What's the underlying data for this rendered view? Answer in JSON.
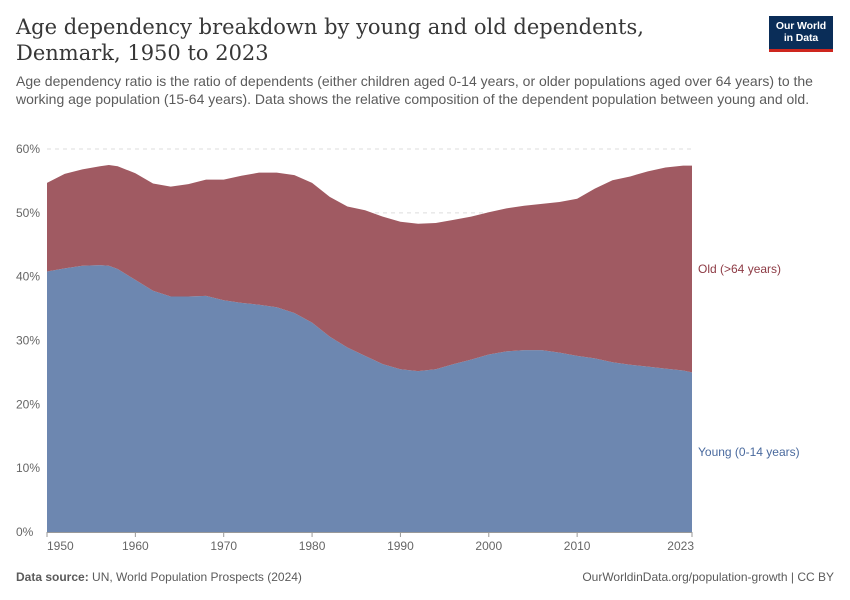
{
  "header": {
    "title": "Age dependency breakdown by young and old dependents, Denmark, 1950 to 2023",
    "subtitle": "Age dependency ratio is the ratio of dependents (either children aged 0-14 years, or older populations aged over 64 years) to the working age population (15-64 years). Data shows the relative composition of the dependent population between young and old.",
    "logo_line1": "Our World",
    "logo_line2": "in Data"
  },
  "footer": {
    "source_label": "Data source:",
    "source_text": "UN, World Population Prospects (2024)",
    "credit": "OurWorldinData.org/population-growth | CC BY"
  },
  "chart_data": {
    "type": "area",
    "stacked": true,
    "title": "Age dependency breakdown by young and old dependents, Denmark, 1950 to 2023",
    "xlabel": "",
    "ylabel": "",
    "xlim": [
      1950,
      2023
    ],
    "ylim": [
      0,
      60
    ],
    "y_ticks": [
      "0%",
      "10%",
      "20%",
      "30%",
      "40%",
      "50%",
      "60%"
    ],
    "x_ticks": [
      "1950",
      "1960",
      "1970",
      "1980",
      "1990",
      "2000",
      "2010",
      "2023"
    ],
    "grid": "horizontal",
    "legend": "inline-right",
    "colors": {
      "young": "#6d87b0",
      "old": "#a05a62",
      "young_label": "#4a6a9e",
      "old_label": "#8d3a44"
    },
    "x": [
      1950,
      1952,
      1954,
      1956,
      1957,
      1958,
      1960,
      1962,
      1964,
      1966,
      1968,
      1970,
      1972,
      1974,
      1976,
      1978,
      1980,
      1982,
      1984,
      1986,
      1988,
      1990,
      1992,
      1994,
      1996,
      1998,
      2000,
      2002,
      2004,
      2006,
      2008,
      2010,
      2012,
      2014,
      2016,
      2018,
      2020,
      2022,
      2023
    ],
    "series": [
      {
        "name": "Young (0-14 years)",
        "values": [
          40.8,
          41.3,
          41.7,
          41.8,
          41.7,
          41.2,
          39.5,
          37.8,
          36.9,
          36.9,
          37.0,
          36.3,
          35.9,
          35.6,
          35.2,
          34.3,
          32.8,
          30.6,
          28.9,
          27.6,
          26.3,
          25.5,
          25.2,
          25.5,
          26.3,
          27.0,
          27.8,
          28.3,
          28.5,
          28.5,
          28.1,
          27.6,
          27.2,
          26.6,
          26.2,
          25.9,
          25.6,
          25.3,
          25.0
        ]
      },
      {
        "name": "Old (>64 years)",
        "values": [
          13.9,
          14.8,
          15.1,
          15.5,
          15.8,
          16.1,
          16.7,
          16.8,
          17.2,
          17.6,
          18.2,
          18.9,
          19.9,
          20.7,
          21.1,
          21.6,
          21.9,
          21.9,
          22.1,
          22.8,
          23.1,
          23.1,
          23.1,
          22.9,
          22.6,
          22.4,
          22.3,
          22.4,
          22.6,
          22.9,
          23.6,
          24.6,
          26.6,
          28.5,
          29.5,
          30.6,
          31.5,
          32.1,
          32.4
        ]
      }
    ]
  }
}
